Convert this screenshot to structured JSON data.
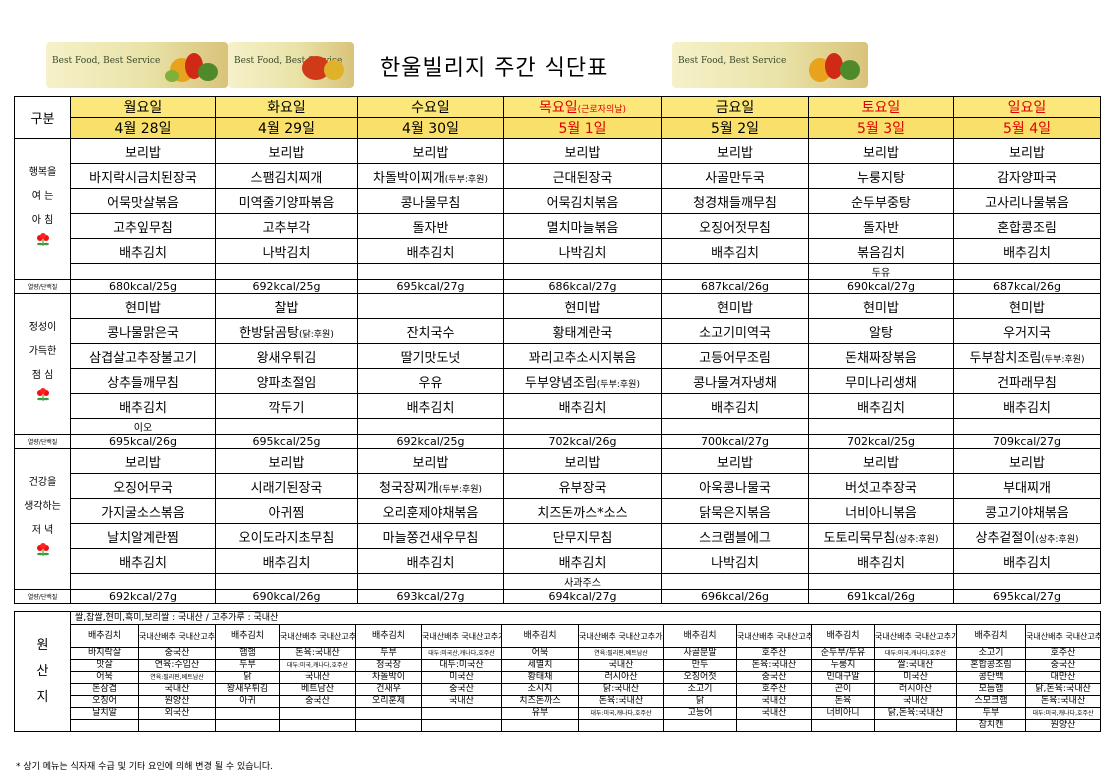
{
  "page": {
    "title": "한울빌리지 주간 식단표",
    "banner_text": "Best Food, Best Service",
    "note": "* 상기 메뉴는 식자재 수급 및 기타  요인에 의해 변경 될 수 있습니다."
  },
  "table": {
    "gubun": "구분",
    "kcal_label": "열량/단백질",
    "days": [
      {
        "name": "월요일",
        "date": "4월 28일"
      },
      {
        "name": "화요일",
        "date": "4월 29일"
      },
      {
        "name": "수요일",
        "date": "4월 30일"
      },
      {
        "name": "목요일",
        "name_note": "(근로자의날)",
        "date": "5월 1일"
      },
      {
        "name": "금요일",
        "date": "5월 2일"
      },
      {
        "name": "토요일",
        "date": "5월 3일"
      },
      {
        "name": "일요일",
        "date": "5월 4일"
      }
    ],
    "meals": [
      {
        "label": [
          "행복을",
          "여 는",
          "아 침"
        ],
        "items": [
          [
            "보리밥",
            "보리밥",
            "보리밥",
            "보리밥",
            "보리밥",
            "보리밥",
            "보리밥"
          ],
          [
            "바지락시금치된장국",
            "스팸김치찌개",
            "차돌박이찌개",
            "근대된장국",
            "사골만두국",
            "누룽지탕",
            "감자양파국"
          ],
          [
            "어묵맛살볶음",
            "미역줄기양파볶음",
            "콩나물무침",
            "어묵김치볶음",
            "청경채들깨무침",
            "순두부중탕",
            "고사리나물볶음"
          ],
          [
            "고추잎무침",
            "고추부각",
            "돌자반",
            "멸치마늘볶음",
            "오징어젓무침",
            "돌자반",
            "혼합콩조림"
          ],
          [
            "배추김치",
            "나박김치",
            "배추김치",
            "나박김치",
            "배추김치",
            "볶음김치",
            "배추김치"
          ]
        ],
        "notes": [
          [
            "",
            "",
            "(두부:후원)",
            "",
            "",
            "",
            ""
          ]
        ],
        "extras": [
          "",
          "",
          "",
          "",
          "",
          "두유",
          ""
        ],
        "kcal": [
          "680kcal/25g",
          "692kcal/25g",
          "695kcal/27g",
          "686kcal/27g",
          "687kcal/26g",
          "690kcal/27g",
          "687kcal/26g"
        ]
      },
      {
        "label": [
          "정성이",
          "가득한",
          "점 심"
        ],
        "items": [
          [
            "현미밥",
            "찰밥",
            "",
            "현미밥",
            "현미밥",
            "현미밥",
            "현미밥"
          ],
          [
            "콩나물맑은국",
            "한방닭곰탕",
            "잔치국수",
            "황태계란국",
            "소고기미역국",
            "알탕",
            "우거지국"
          ],
          [
            "삼겹살고추장불고기",
            "왕새우튀김",
            "딸기맛도넛",
            "꽈리고추소시지볶음",
            "고등어무조림",
            "돈채짜장볶음",
            "두부참치조림"
          ],
          [
            "상추들깨무침",
            "양파초절임",
            "우유",
            "두부양념조림",
            "콩나물겨자냉채",
            "무미나리생채",
            "건파래무침"
          ],
          [
            "배추김치",
            "깍두기",
            "배추김치",
            "배추김치",
            "배추김치",
            "배추김치",
            "배추김치"
          ]
        ],
        "notes": [
          [
            "",
            "(닭:후원)",
            "",
            "",
            "",
            "",
            "(두부:후원)"
          ],
          [
            "",
            "",
            "",
            "(두부:후원)",
            "",
            "",
            ""
          ]
        ],
        "extras": [
          "이오",
          "",
          "",
          "",
          "",
          "",
          ""
        ],
        "kcal": [
          "695kcal/26g",
          "695kcal/25g",
          "692kcal/25g",
          "702kcal/26g",
          "700kcal/27g",
          "702kcal/25g",
          "709kcal/27g"
        ]
      },
      {
        "label": [
          "건강을",
          "생각하는",
          "저 녁"
        ],
        "items": [
          [
            "보리밥",
            "보리밥",
            "보리밥",
            "보리밥",
            "보리밥",
            "보리밥",
            "보리밥"
          ],
          [
            "오징어무국",
            "시래기된장국",
            "청국장찌개",
            "유부장국",
            "아욱콩나물국",
            "버섯고추장국",
            "부대찌개"
          ],
          [
            "가지굴소스볶음",
            "아귀찜",
            "오리훈제야채볶음",
            "치즈돈까스*소스",
            "닭묵은지볶음",
            "너비아니볶음",
            "콩고기야채볶음"
          ],
          [
            "날치알계란찜",
            "오이도라지초무침",
            "마늘쫑건새우무침",
            "단무지무침",
            "스크램블에그",
            "도토리묵무침",
            "상추겉절이"
          ],
          [
            "배추김치",
            "배추김치",
            "배추김치",
            "배추김치",
            "나박김치",
            "배추김치",
            "배추김치"
          ]
        ],
        "notes": [
          [
            "",
            "",
            "(두부:후원)",
            "",
            "",
            "",
            ""
          ],
          [
            "",
            "",
            "",
            "",
            "",
            "(상추:후원)",
            "(상추:후원)"
          ]
        ],
        "extras": [
          "",
          "",
          "",
          "사과주스",
          "",
          "",
          ""
        ],
        "kcal": [
          "692kcal/27g",
          "690kcal/26g",
          "693kcal/27g",
          "694kcal/27g",
          "696kcal/26g",
          "691kcal/26g",
          "695kcal/27g"
        ]
      }
    ]
  },
  "origin": {
    "label": [
      "원",
      "산",
      "지"
    ],
    "info": "쌀,찹쌀,현미,흑미,보리쌀 : 국내산 / 고추가루 : 국내산",
    "header": [
      "배추김치",
      "국내산배추 국내산고추가루"
    ],
    "rows": [
      [
        "바지락살",
        "중국산",
        "햄햄",
        "돈육:국내산",
        "두부",
        "대두:미국산,캐나다,호주산",
        "어묵",
        "연육:필리핀,베트남산",
        "사골분말",
        "호주산",
        "순두부/두유",
        "대두:미국,캐나다,호주산",
        "소고기",
        "호주산"
      ],
      [
        "맛살",
        "연육:수입산",
        "두부",
        "대두:미국,캐나다,호주산",
        "청국장",
        "대두:미국산",
        "세멸치",
        "국내산",
        "만두",
        "돈육:국내산",
        "누룽지",
        "쌀:국내산",
        "혼합콩조림",
        "중국산"
      ],
      [
        "어묵",
        "연육:필리핀,베트남산",
        "닭",
        "국내산",
        "차돌박이",
        "미국산",
        "황태채",
        "러시아산",
        "오징어젓",
        "중국산",
        "민대구알",
        "미국산",
        "콩단백",
        "대만산"
      ],
      [
        "돈삼겹",
        "국내산",
        "왕새우튀김",
        "베트남산",
        "건새우",
        "중국산",
        "소시지",
        "닭:국내산",
        "소고기",
        "호주산",
        "곤이",
        "러시아산",
        "모듬햄",
        "닭,돈육:국내산"
      ],
      [
        "오징어",
        "원양산",
        "아귀",
        "중국산",
        "오리훈제",
        "국내산",
        "치즈돈까스",
        "돈육:국내산",
        "닭",
        "국내산",
        "돈육",
        "국내산",
        "스모크햄",
        "돈육:국내산"
      ],
      [
        "날치알",
        "외국산",
        "",
        "",
        "",
        "",
        "유부",
        "대두:미국,캐나다,호주산",
        "고등어",
        "국내산",
        "너비아니",
        "닭,돈육:국내산",
        "두부",
        "대두:미국,캐나다,호주산"
      ],
      [
        "",
        "",
        "",
        "",
        "",
        "",
        "",
        "",
        "",
        "",
        "",
        "",
        "참치캔",
        "원양산"
      ]
    ]
  }
}
